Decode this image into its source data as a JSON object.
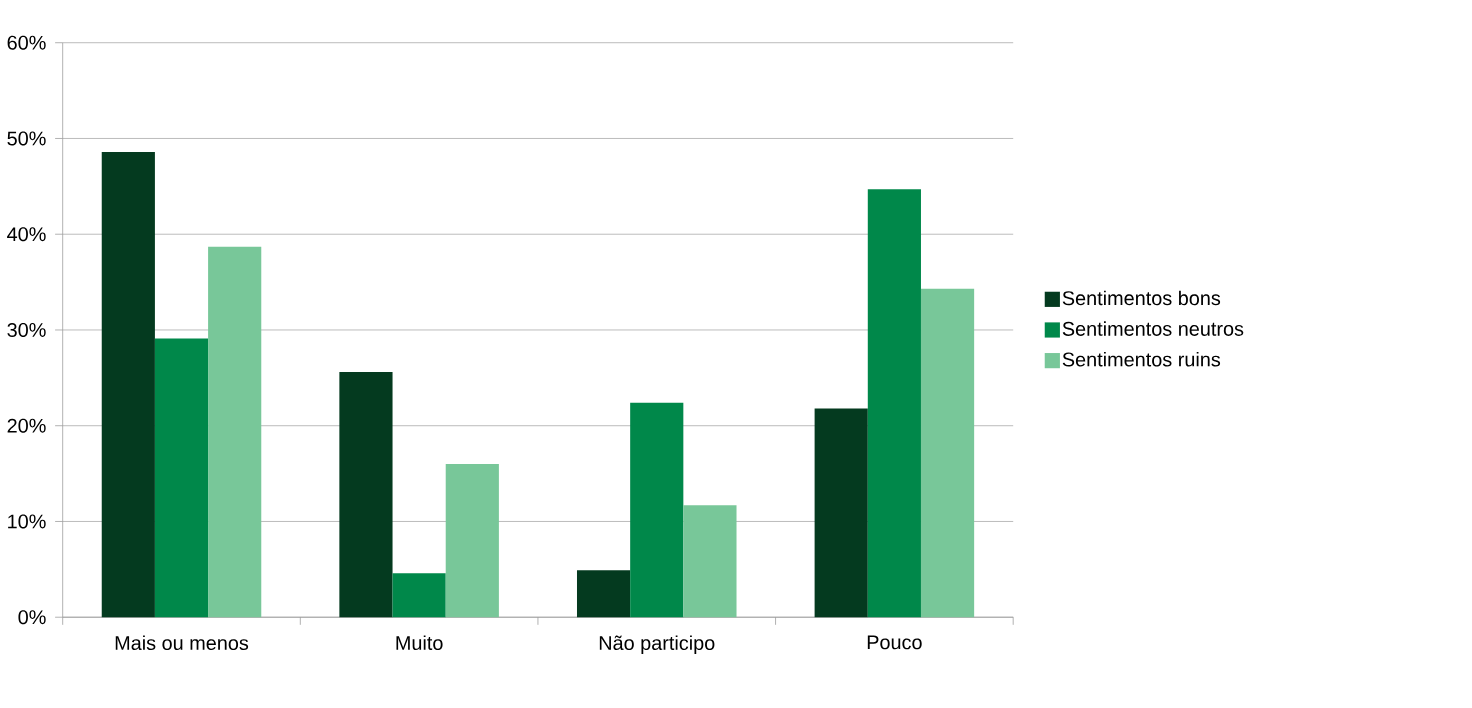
{
  "chart_data": {
    "type": "bar",
    "categories": [
      "Mais ou menos",
      "Muito",
      "Não participo",
      "Pouco"
    ],
    "series": [
      {
        "name": "Sentimentos bons",
        "color": "#043a1f",
        "values": [
          48.6,
          25.6,
          4.9,
          21.8
        ]
      },
      {
        "name": "Sentimentos neutros",
        "color": "#00884a",
        "values": [
          29.1,
          4.6,
          22.4,
          44.7
        ]
      },
      {
        "name": "Sentimentos ruins",
        "color": "#78c799",
        "values": [
          38.7,
          16.0,
          11.7,
          34.3
        ]
      }
    ],
    "ylim": [
      0,
      60
    ],
    "yticks": [
      {
        "value": 0,
        "label": "0%"
      },
      {
        "value": 10,
        "label": "10%"
      },
      {
        "value": 20,
        "label": "20%"
      },
      {
        "value": 30,
        "label": "30%"
      },
      {
        "value": 40,
        "label": "40%"
      },
      {
        "value": 50,
        "label": "50%"
      },
      {
        "value": 60,
        "label": "60%"
      }
    ],
    "grid": "y",
    "legend": "right"
  }
}
